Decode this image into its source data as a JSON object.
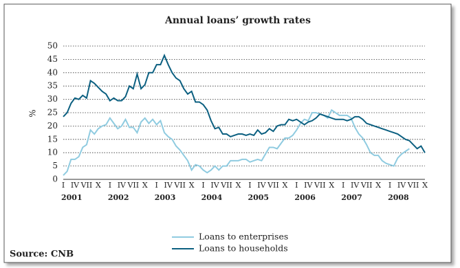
{
  "chart_data": {
    "type": "line",
    "title": "Annual loans’ growth rates",
    "y_label": "%",
    "source": "Source: CNB",
    "categories": [
      "I",
      null,
      null,
      "IV",
      null,
      null,
      "VII",
      null,
      null,
      "X",
      null,
      null,
      "I",
      null,
      null,
      "IV",
      null,
      null,
      "VII",
      null,
      null,
      "X",
      null,
      null,
      "I",
      null,
      null,
      "IV",
      null,
      null,
      "VII",
      null,
      null,
      "X",
      null,
      null,
      "I",
      null,
      null,
      "IV",
      null,
      null,
      "VII",
      null,
      null,
      "X",
      null,
      null,
      "I",
      null,
      null,
      "IV",
      null,
      null,
      "VII",
      null,
      null,
      "X",
      null,
      null,
      "I",
      null,
      null,
      "IV",
      null,
      null,
      "VII",
      null,
      null,
      "X",
      null,
      null,
      "I",
      null,
      null,
      "IV",
      null,
      null,
      "VII",
      null,
      null,
      "X",
      null,
      null,
      "I",
      null,
      null,
      "IV",
      null,
      null,
      "VII",
      null,
      null,
      "X"
    ],
    "x_groups": [
      "2001",
      "2002",
      "2003",
      "2004",
      "2005",
      "2006",
      "2007",
      "2008"
    ],
    "series": [
      {
        "name": "Loans to enterprises",
        "color": "#8fcbe0",
        "values": [
          1.5,
          3,
          7.5,
          7.5,
          8.5,
          12,
          13,
          18.5,
          17,
          19,
          20,
          20.5,
          23,
          21,
          19,
          20,
          22.5,
          19.5,
          19.5,
          17.5,
          21.5,
          23,
          21,
          22.5,
          20.5,
          22,
          17.5,
          16,
          15,
          12.5,
          11,
          9,
          7,
          3.5,
          5.5,
          5,
          3.5,
          2.5,
          3.5,
          5,
          3.5,
          5,
          5,
          7,
          7,
          7,
          7.5,
          7.5,
          6.5,
          7,
          7.5,
          7,
          9.5,
          12,
          12,
          11.5,
          13.5,
          15.5,
          15.5,
          16.5,
          18.5,
          21,
          22.5,
          22,
          25,
          25,
          24.5,
          24,
          23,
          26,
          25,
          24,
          24,
          24,
          23,
          19.5,
          17,
          15.5,
          13,
          10,
          9,
          9,
          7,
          6,
          5.5,
          5,
          8,
          9.5,
          10.5,
          11.5,
          null,
          null,
          null,
          null
        ]
      },
      {
        "name": "Loans to households",
        "color": "#0b5f80",
        "values": [
          23.5,
          25,
          28.5,
          30.5,
          30,
          31.5,
          30.5,
          37,
          36,
          34.5,
          33,
          32,
          29.5,
          30.5,
          29.5,
          29.5,
          31,
          35,
          34,
          39.5,
          34,
          35.5,
          40,
          40,
          43,
          43,
          46.5,
          43,
          40,
          38,
          37,
          34,
          32,
          33,
          29,
          29,
          28,
          26,
          22,
          19,
          19.5,
          17,
          17,
          16,
          16.5,
          17,
          17,
          16.5,
          17,
          16.5,
          18.5,
          17,
          17.5,
          19,
          18,
          20,
          20.5,
          20.5,
          22.5,
          22,
          22.5,
          21.5,
          20.5,
          21.5,
          22,
          23,
          24.5,
          24,
          23.5,
          23,
          22.5,
          22.5,
          22.5,
          22,
          22.5,
          23.5,
          23.5,
          22.5,
          21,
          20.5,
          20,
          19.5,
          19,
          18.5,
          18,
          17.5,
          17,
          16,
          15,
          14.5,
          13,
          11.5,
          12.5,
          10
        ]
      }
    ],
    "ylim": [
      0,
      50
    ],
    "yticks": [
      0,
      5,
      10,
      15,
      20,
      25,
      30,
      35,
      40,
      45,
      50
    ],
    "grid": true
  }
}
